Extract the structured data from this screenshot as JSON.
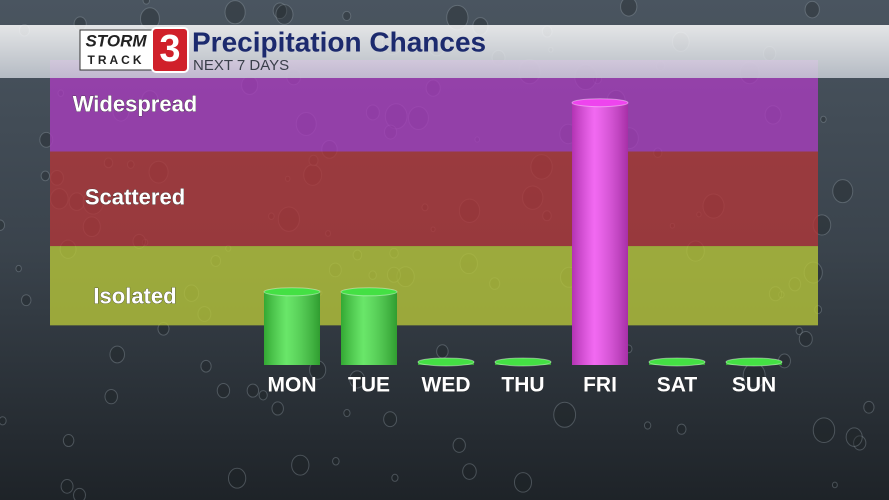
{
  "chart_data": {
    "type": "bar",
    "title": "Precipitation Chances",
    "subtitle": "NEXT 7 DAYS",
    "logo": {
      "word1": "STORM",
      "word2": "TRACK",
      "number": "3"
    },
    "categories": [
      "MON",
      "TUE",
      "WED",
      "THU",
      "FRI",
      "SAT",
      "SUN"
    ],
    "values": [
      24,
      24,
      1,
      1,
      86,
      1,
      1
    ],
    "colors": [
      "#44e044",
      "#44e044",
      "#44e044",
      "#44e044",
      "#ee44ee",
      "#44e044",
      "#44e044"
    ],
    "ylim": [
      0,
      100
    ],
    "bands": [
      {
        "label": "Isolated",
        "from": 13,
        "to": 39,
        "color": "#b5c43a"
      },
      {
        "label": "Scattered",
        "from": 39,
        "to": 70,
        "color": "#b0373a"
      },
      {
        "label": "Widespread",
        "from": 70,
        "to": 100,
        "color": "#a83dbd"
      }
    ]
  }
}
